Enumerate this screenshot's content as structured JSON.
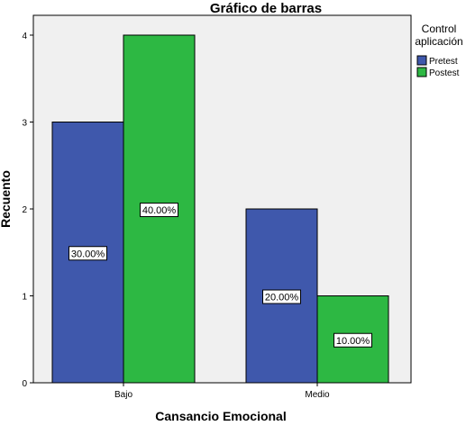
{
  "chart_data": {
    "type": "bar",
    "title": "Gráfico de barras",
    "xlabel": "Cansancio Emocional",
    "ylabel": "Recuento",
    "categories": [
      "Bajo",
      "Medio"
    ],
    "ylim": [
      0,
      4.4
    ],
    "yticks": [
      "0",
      "1",
      "2",
      "3",
      "4"
    ],
    "grid": false,
    "legend_position": "right",
    "legend_title_lines": [
      "Control",
      "aplicación"
    ],
    "series": [
      {
        "name": "Pretest",
        "color": "#3f58ac",
        "values": [
          3,
          2
        ],
        "data_labels": [
          "30.00%",
          "20.00%"
        ]
      },
      {
        "name": "Postest",
        "color": "#2db843",
        "values": [
          4,
          1
        ],
        "data_labels": [
          "40.00%",
          "10.00%"
        ]
      }
    ],
    "plot_background": "#f0f0f0"
  }
}
